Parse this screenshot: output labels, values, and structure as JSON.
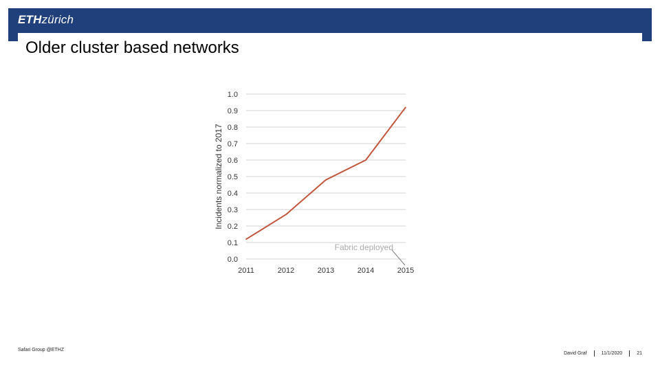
{
  "header": {
    "logo_primary": "ETH",
    "logo_secondary": "zürich",
    "bar_color": "#1f407a"
  },
  "slide": {
    "title": "Older cluster based networks"
  },
  "footer": {
    "group": "Safari Group @ETHZ",
    "author": "David Graf",
    "date": "11/1/2020",
    "page": "21"
  },
  "chart_data": {
    "type": "line",
    "title": "",
    "xlabel": "",
    "ylabel": "Incidents normalized to 2017",
    "categories": [
      "2011",
      "2012",
      "2013",
      "2014",
      "2015"
    ],
    "x": [
      2011,
      2012,
      2013,
      2014,
      2015
    ],
    "y_ticks": [
      "0.0",
      "0.1",
      "0.2",
      "0.3",
      "0.4",
      "0.5",
      "0.6",
      "0.7",
      "0.8",
      "0.9",
      "1.0"
    ],
    "ylim": [
      0,
      1.0
    ],
    "grid": true,
    "series": [
      {
        "values": [
          0.12,
          0.27,
          0.48,
          0.6,
          0.92
        ],
        "color": "#c0553c"
      }
    ],
    "annotation": {
      "text": "Fabric deployed",
      "x": 2015,
      "y": 0.0
    }
  }
}
